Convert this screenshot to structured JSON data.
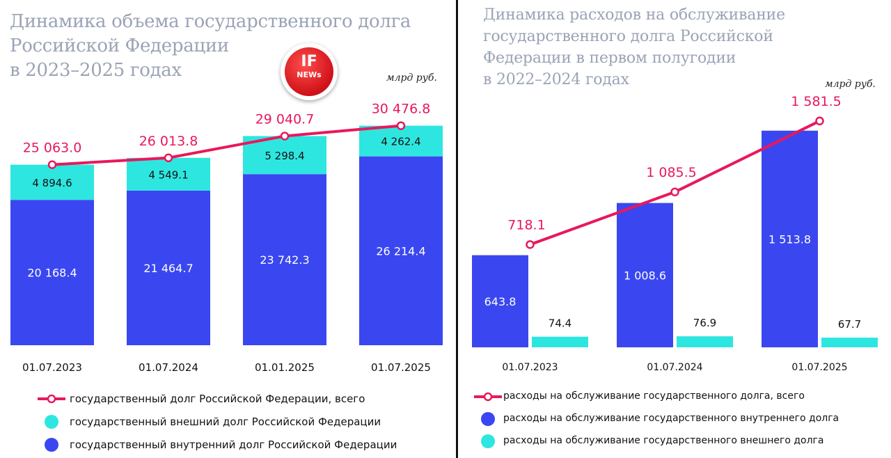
{
  "colors": {
    "internal": "#3a47f0",
    "external": "#2ee6e0",
    "total": "#e8185a",
    "axis": "#111111",
    "title": "#9aa3b5"
  },
  "logo": {
    "top_text": "IF",
    "bottom_text": "NEWs"
  },
  "chart_data": [
    {
      "type": "bar",
      "stacked": true,
      "title": "Динамика объема государственного долга\nРоссийской Федерации\nв 2023–2025 годах",
      "unit_label": "млрд руб.",
      "categories": [
        "01.07.2023",
        "01.07.2024",
        "01.01.2025",
        "01.07.2025"
      ],
      "series": [
        {
          "name": "государственный внутренний долг Российской Федерации",
          "kind": "bar",
          "color": "#3a47f0",
          "values": [
            20168.4,
            21464.7,
            23742.3,
            26214.4
          ],
          "labels": [
            "20 168.4",
            "21 464.7",
            "23 742.3",
            "26 214.4"
          ]
        },
        {
          "name": "государственный внешний долг Российской Федерации",
          "kind": "bar",
          "color": "#2ee6e0",
          "values": [
            4894.6,
            4549.1,
            5298.4,
            4262.4
          ],
          "labels": [
            "4 894.6",
            "4 549.1",
            "5 298.4",
            "4 262.4"
          ]
        },
        {
          "name": "государственный долг Российской Федерации, всего",
          "kind": "line",
          "color": "#e8185a",
          "values": [
            25063.0,
            26013.8,
            29040.7,
            30476.8
          ],
          "labels": [
            "25 063.0",
            "26 013.8",
            "29 040.7",
            "30 476.8"
          ]
        }
      ],
      "legend": [
        {
          "series": 2,
          "label": "государственный долг Российской Федерации, всего"
        },
        {
          "series": 1,
          "label": "государственный внешний долг Российской Федерации"
        },
        {
          "series": 0,
          "label": "государственный внутренний долг Российской Федерации"
        }
      ],
      "ylim": [
        0,
        31500
      ],
      "grid": false,
      "legend_position": "bottom-left"
    },
    {
      "type": "bar",
      "stacked": false,
      "title": "Динамика расходов на обслуживание\nгосударственного долга Российской\nФедерации в первом полугодии\nв 2022–2024 годах",
      "unit_label": "млрд руб.",
      "categories": [
        "01.07.2023",
        "01.07.2024",
        "01.07.2025"
      ],
      "series": [
        {
          "name": "расходы на обслуживание государственного внутреннего долга",
          "kind": "bar",
          "color": "#3a47f0",
          "values": [
            643.8,
            1008.6,
            1513.8
          ],
          "labels": [
            "643.8",
            "1 008.6",
            "1 513.8"
          ]
        },
        {
          "name": "расходы на обслуживание государственного внешнего долга",
          "kind": "bar",
          "color": "#2ee6e0",
          "values": [
            74.4,
            76.9,
            67.7
          ],
          "labels": [
            "74.4",
            "76.9",
            "67.7"
          ]
        },
        {
          "name": "расходы на обслуживание государственного долга, всего",
          "kind": "line",
          "color": "#e8185a",
          "values": [
            718.1,
            1085.5,
            1581.5
          ],
          "labels": [
            "718.1",
            "1 085.5",
            "1 581.5"
          ]
        }
      ],
      "legend": [
        {
          "series": 2,
          "label": "расходы на обслуживание государственного долга, всего"
        },
        {
          "series": 0,
          "label": "расходы на обслуживание государственного внутреннего долга"
        },
        {
          "series": 1,
          "label": "расходы на обслуживание государственного внешнего долга"
        }
      ],
      "ylim": [
        0,
        1600
      ],
      "grid": false,
      "legend_position": "bottom-left"
    }
  ]
}
